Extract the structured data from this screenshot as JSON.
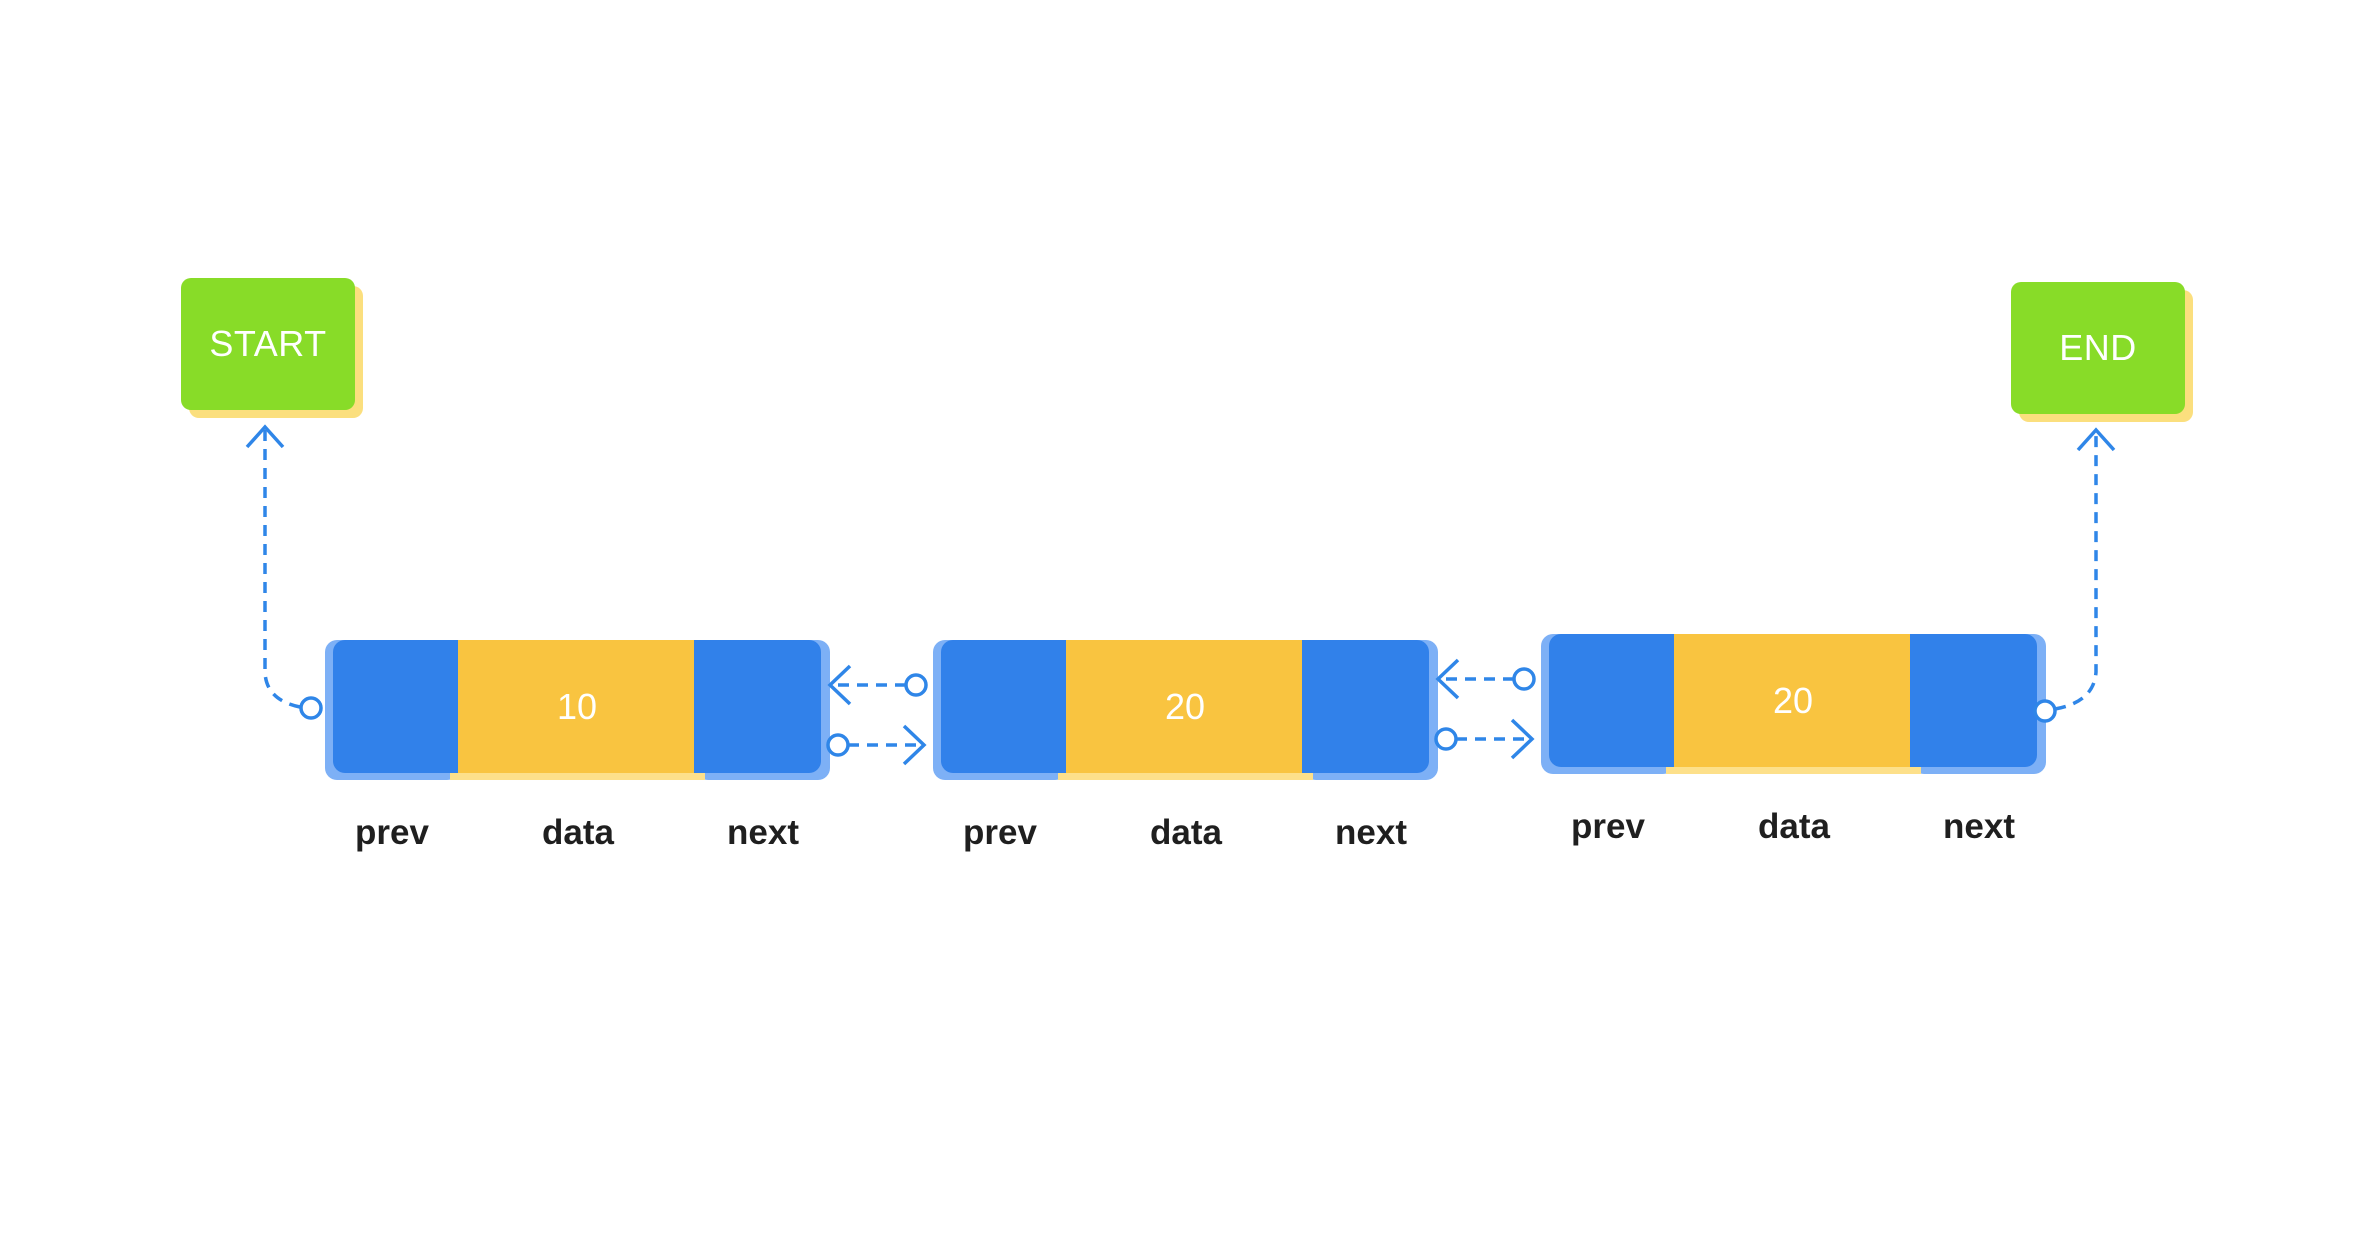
{
  "start": {
    "label": "START"
  },
  "end": {
    "label": "END"
  },
  "colors": {
    "terminal": "#88dc28",
    "terminal_shadow": "#fbdf7e",
    "pointer_cell": "#3181ea",
    "pointer_halo": "#7db0f6",
    "data_cell": "#f9c440",
    "link": "#2f86e8"
  },
  "nodes": [
    {
      "value": "10",
      "labels": {
        "prev": "prev",
        "data": "data",
        "next": "next"
      }
    },
    {
      "value": "20",
      "labels": {
        "prev": "prev",
        "data": "data",
        "next": "next"
      }
    },
    {
      "value": "20",
      "labels": {
        "prev": "prev",
        "data": "data",
        "next": "next"
      }
    }
  ]
}
